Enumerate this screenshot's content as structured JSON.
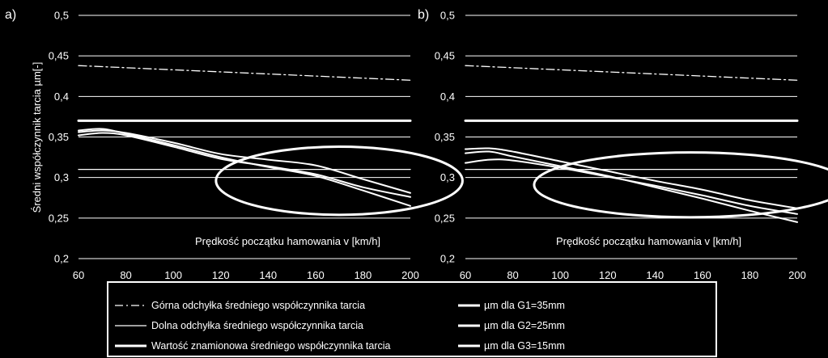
{
  "chart_data": [
    {
      "type": "line",
      "panel_label": "a)",
      "xlabel": "Prędkość  początku hamowania v [km/h]",
      "ylabel": "Średni współczynnik tarcia µm[-]",
      "xlim": [
        60,
        200
      ],
      "ylim": [
        0.2,
        0.5
      ],
      "x_ticks": [
        "60",
        "80",
        "100",
        "120",
        "140",
        "160",
        "180",
        "200"
      ],
      "y_ticks": [
        "0,2",
        "0,25",
        "0,3",
        "0,35",
        "0,4",
        "0,45",
        "0,5"
      ],
      "grid": true,
      "series": [
        {
          "name": "Górna odchyłka średniego współczynnika tarcia",
          "x": [
            60,
            200
          ],
          "y": [
            0.438,
            0.42
          ]
        },
        {
          "name": "Dolna odchyłka średniego współczynnika tarcia",
          "x": [
            60,
            200
          ],
          "y": [
            0.31,
            0.31
          ]
        },
        {
          "name": "Wartość znamionowa średniego współczynnika tarcia",
          "x": [
            60,
            200
          ],
          "y": [
            0.37,
            0.37
          ]
        },
        {
          "name": "µm dla G1=35mm",
          "x": [
            60,
            70,
            80,
            100,
            120,
            140,
            160,
            180,
            200
          ],
          "y": [
            0.356,
            0.358,
            0.355,
            0.343,
            0.329,
            0.322,
            0.315,
            0.298,
            0.281
          ]
        },
        {
          "name": "µm dla G2=25mm",
          "x": [
            60,
            70,
            80,
            100,
            120,
            140,
            160,
            180,
            200
          ],
          "y": [
            0.352,
            0.355,
            0.352,
            0.338,
            0.323,
            0.314,
            0.304,
            0.288,
            0.276
          ]
        },
        {
          "name": "µm dla G3=15mm",
          "x": [
            60,
            70,
            80,
            100,
            120,
            140,
            160,
            180,
            200
          ],
          "y": [
            0.358,
            0.36,
            0.354,
            0.34,
            0.325,
            0.313,
            0.302,
            0.284,
            0.265
          ]
        }
      ],
      "annotation_ellipse": {
        "cx": 170,
        "cy": 0.296,
        "rx": 52,
        "ry": 0.042
      }
    },
    {
      "type": "line",
      "panel_label": "b)",
      "xlabel": "Prędkość  początku hamowania v [km/h]",
      "ylabel": "",
      "xlim": [
        60,
        200
      ],
      "ylim": [
        0.2,
        0.5
      ],
      "x_ticks": [
        "60",
        "80",
        "100",
        "120",
        "140",
        "160",
        "180",
        "200"
      ],
      "y_ticks": [
        "0,2",
        "0,25",
        "0,3",
        "0,35",
        "0,4",
        "0,45",
        "0,5"
      ],
      "grid": true,
      "series": [
        {
          "name": "Górna odchyłka średniego współczynnika tarcia",
          "x": [
            60,
            200
          ],
          "y": [
            0.438,
            0.42
          ]
        },
        {
          "name": "Dolna odchyłka średniego współczynnika tarcia",
          "x": [
            60,
            200
          ],
          "y": [
            0.31,
            0.31
          ]
        },
        {
          "name": "Wartość znamionowa średniego współczynnika tarcia",
          "x": [
            60,
            200
          ],
          "y": [
            0.37,
            0.37
          ]
        },
        {
          "name": "µm dla G1=35mm",
          "x": [
            60,
            70,
            80,
            100,
            120,
            140,
            160,
            180,
            200
          ],
          "y": [
            0.335,
            0.336,
            0.332,
            0.32,
            0.308,
            0.296,
            0.285,
            0.272,
            0.262
          ]
        },
        {
          "name": "µm dla G2=25mm",
          "x": [
            60,
            70,
            80,
            100,
            120,
            140,
            160,
            180,
            200
          ],
          "y": [
            0.318,
            0.322,
            0.321,
            0.312,
            0.301,
            0.29,
            0.278,
            0.265,
            0.255
          ]
        },
        {
          "name": "µm dla G3=15mm",
          "x": [
            60,
            70,
            80,
            100,
            120,
            140,
            160,
            180,
            200
          ],
          "y": [
            0.33,
            0.332,
            0.326,
            0.314,
            0.302,
            0.288,
            0.274,
            0.259,
            0.245
          ]
        }
      ],
      "annotation_ellipse": {
        "cx": 155,
        "cy": 0.291,
        "rx": 66,
        "ry": 0.04
      }
    }
  ],
  "legend": {
    "items": [
      {
        "label": "Górna odchyłka średniego współczynnika tarcia",
        "style": "dashdot"
      },
      {
        "label": "Dolna odchyłka średniego współczynnika tarcia",
        "style": "thin"
      },
      {
        "label": "Wartość znamionowa średniego współczynnika tarcia",
        "style": "thick"
      },
      {
        "label": "µm dla G1=35mm",
        "style": "thick"
      },
      {
        "label": "µm dla G2=25mm",
        "style": "thick"
      },
      {
        "label": "µm dla G3=15mm",
        "style": "thick"
      }
    ]
  },
  "colors": {
    "background": "#000000",
    "foreground": "#ffffff",
    "grid": "#ffffff"
  }
}
